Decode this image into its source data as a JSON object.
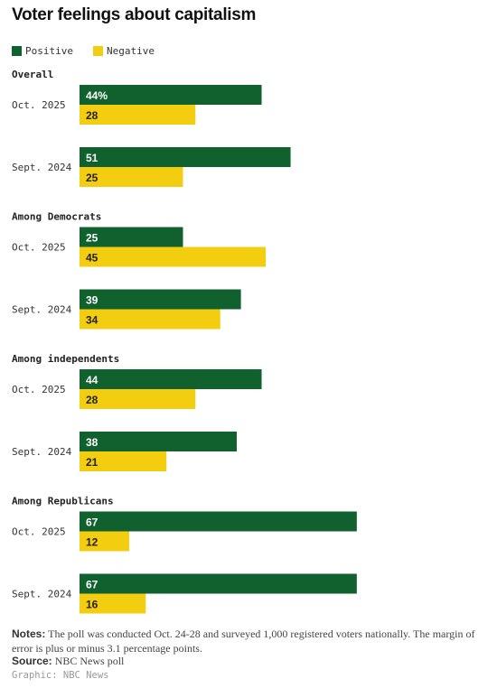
{
  "chart_data": {
    "type": "bar",
    "title": "Voter feelings about capitalism",
    "unit_suffix": "%",
    "xlim": [
      0,
      100
    ],
    "grid": false,
    "legend_position": "top-left",
    "series": [
      {
        "name": "Positive",
        "color": "#11612f"
      },
      {
        "name": "Negative",
        "color": "#f3cd0f"
      }
    ],
    "groups": [
      {
        "label": "Overall",
        "rows": [
          {
            "label": "Oct. 2025",
            "positive": 44,
            "negative": 28
          },
          {
            "label": "Sept. 2024",
            "positive": 51,
            "negative": 25
          }
        ]
      },
      {
        "label": "Among Democrats",
        "rows": [
          {
            "label": "Oct. 2025",
            "positive": 25,
            "negative": 45
          },
          {
            "label": "Sept. 2024",
            "positive": 39,
            "negative": 34
          }
        ]
      },
      {
        "label": "Among independents",
        "rows": [
          {
            "label": "Oct. 2025",
            "positive": 44,
            "negative": 28
          },
          {
            "label": "Sept. 2024",
            "positive": 38,
            "negative": 21
          }
        ]
      },
      {
        "label": "Among Republicans",
        "rows": [
          {
            "label": "Oct. 2025",
            "positive": 67,
            "negative": 12
          },
          {
            "label": "Sept. 2024",
            "positive": 67,
            "negative": 16
          }
        ]
      }
    ]
  },
  "footer": {
    "notes_label": "Notes:",
    "notes_text": "The poll was conducted Oct. 24-28 and surveyed 1,000 registered voters nationally. The margin of error is plus or minus 3.1 percentage points.",
    "source_label": "Source:",
    "source_text": "NBC News poll",
    "credit": "Graphic: NBC News"
  }
}
